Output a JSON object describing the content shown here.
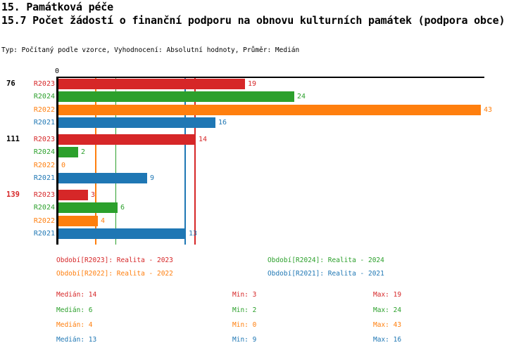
{
  "header": {
    "title": "15. Památková péče",
    "subtitle": "15.7 Počet žádostí o finanční podporu na obnovu kulturních památek (podpora obce)",
    "meta": "Typ: Počítaný podle vzorce, Vyhodnocení: Absolutní hodnoty, Průměr: Medián"
  },
  "colors": {
    "red": "#d62728",
    "green": "#2ca02c",
    "orange": "#ff7f0e",
    "blue": "#1f77b4",
    "axis": "#000000"
  },
  "chart_data": {
    "type": "bar",
    "orientation": "horizontal",
    "zero_label": "0",
    "xlim": [
      0,
      43.4
    ],
    "grid": "median-lines-only",
    "series_order": [
      "R2023",
      "R2024",
      "R2022",
      "R2021"
    ],
    "series_colors": [
      "#d62728",
      "#2ca02c",
      "#ff7f0e",
      "#1f77b4"
    ],
    "groups": [
      {
        "label": "76",
        "label_color": "#000000",
        "values": [
          19,
          24,
          43,
          16
        ]
      },
      {
        "label": "111",
        "label_color": "#000000",
        "values": [
          14,
          2,
          0,
          9
        ]
      },
      {
        "label": "139",
        "label_color": "#d62728",
        "values": [
          3,
          6,
          4,
          13
        ]
      }
    ],
    "median_lines": [
      {
        "series": "R2023",
        "value": 14,
        "color": "#d62728"
      },
      {
        "series": "R2024",
        "value": 6,
        "color": "#2ca02c"
      },
      {
        "series": "R2022",
        "value": 4,
        "color": "#ff7f0e"
      },
      {
        "series": "R2021",
        "value": 13,
        "color": "#1f77b4"
      }
    ]
  },
  "legend": {
    "items": [
      {
        "text": "Období[R2023]: Realita - 2023",
        "color": "#d62728",
        "row": 0,
        "col": 0
      },
      {
        "text": "Období[R2024]: Realita - 2024",
        "color": "#2ca02c",
        "row": 0,
        "col": 1
      },
      {
        "text": "Období[R2022]: Realita - 2022",
        "color": "#ff7f0e",
        "row": 1,
        "col": 0
      },
      {
        "text": "Období[R2021]: Realita - 2021",
        "color": "#1f77b4",
        "row": 1,
        "col": 1
      }
    ]
  },
  "stats": {
    "rows": [
      {
        "color": "#d62728",
        "median": "Medián: 14",
        "min": "Min: 3",
        "max": "Max: 19"
      },
      {
        "color": "#2ca02c",
        "median": "Medián: 6",
        "min": "Min: 2",
        "max": "Max: 24"
      },
      {
        "color": "#ff7f0e",
        "median": "Medián: 4",
        "min": "Min: 0",
        "max": "Max: 43"
      },
      {
        "color": "#1f77b4",
        "median": "Medián: 13",
        "min": "Min: 9",
        "max": "Max: 16"
      }
    ]
  }
}
